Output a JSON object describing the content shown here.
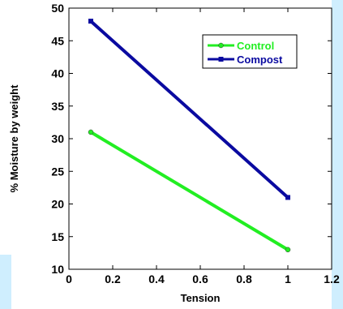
{
  "chart_data": {
    "type": "line",
    "xlabel": "Tension",
    "ylabel": "% Moisture by weight",
    "xlim": [
      0,
      1.2
    ],
    "ylim": [
      10,
      50
    ],
    "xticks": [
      0,
      0.2,
      0.4,
      0.6,
      0.8,
      1,
      1.2
    ],
    "xtick_labels": [
      "0",
      "0.2",
      "0.4",
      "0.6",
      "0.8",
      "1",
      "1.2"
    ],
    "yticks": [
      10,
      15,
      20,
      25,
      30,
      35,
      40,
      45,
      50
    ],
    "ytick_labels": [
      "10",
      "15",
      "20",
      "25",
      "30",
      "35",
      "40",
      "45",
      "50"
    ],
    "grid": false,
    "legend_position": "top-right",
    "series": [
      {
        "name": "Control",
        "color": "#22ee22",
        "marker": "circle",
        "x": [
          0.1,
          1
        ],
        "y": [
          31,
          13
        ]
      },
      {
        "name": "Compost",
        "color": "#0a0aa0",
        "marker": "square",
        "x": [
          0.1,
          1
        ],
        "y": [
          48,
          21
        ]
      }
    ]
  }
}
